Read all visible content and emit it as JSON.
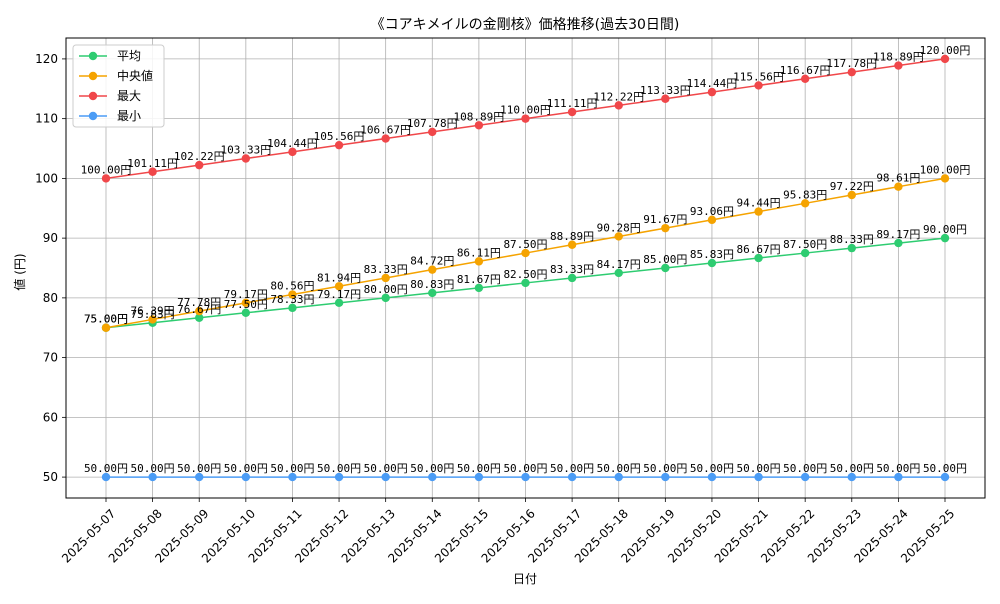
{
  "chart_data": {
    "type": "line",
    "title": "《コアキメイルの金剛核》価格推移(過去30日間)",
    "xlabel": "日付",
    "ylabel": "値 (円)",
    "ylim": [
      46.5,
      123.5
    ],
    "yticks": [
      50,
      60,
      70,
      80,
      90,
      100,
      110,
      120
    ],
    "grid": true,
    "legend_position": "top-left",
    "value_suffix": "円",
    "categories": [
      "2025-05-07",
      "2025-05-08",
      "2025-05-09",
      "2025-05-10",
      "2025-05-11",
      "2025-05-12",
      "2025-05-13",
      "2025-05-14",
      "2025-05-15",
      "2025-05-16",
      "2025-05-17",
      "2025-05-18",
      "2025-05-19",
      "2025-05-20",
      "2025-05-21",
      "2025-05-22",
      "2025-05-23",
      "2025-05-24",
      "2025-05-25"
    ],
    "series": [
      {
        "name": "平均",
        "color": "#2ecc71",
        "values": [
          75.0,
          75.83,
          76.67,
          77.5,
          78.33,
          79.17,
          80.0,
          80.83,
          81.67,
          82.5,
          83.33,
          84.17,
          85.0,
          85.83,
          86.67,
          87.5,
          88.33,
          89.17,
          90.0
        ]
      },
      {
        "name": "中央値",
        "color": "#f5a300",
        "values": [
          75.0,
          76.39,
          77.78,
          79.17,
          80.56,
          81.94,
          83.33,
          84.72,
          86.11,
          87.5,
          88.89,
          90.28,
          91.67,
          93.06,
          94.44,
          95.83,
          97.22,
          98.61,
          100.0
        ]
      },
      {
        "name": "最大",
        "color": "#f0474a",
        "values": [
          100.0,
          101.11,
          102.22,
          103.33,
          104.44,
          105.56,
          106.67,
          107.78,
          108.89,
          110.0,
          111.11,
          112.22,
          113.33,
          114.44,
          115.56,
          116.67,
          117.78,
          118.89,
          120.0
        ]
      },
      {
        "name": "最小",
        "color": "#4b9cf5",
        "values": [
          50.0,
          50.0,
          50.0,
          50.0,
          50.0,
          50.0,
          50.0,
          50.0,
          50.0,
          50.0,
          50.0,
          50.0,
          50.0,
          50.0,
          50.0,
          50.0,
          50.0,
          50.0,
          50.0
        ]
      }
    ]
  }
}
